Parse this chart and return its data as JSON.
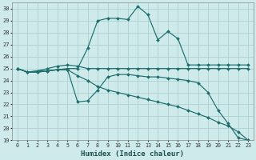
{
  "xlabel": "Humidex (Indice chaleur)",
  "bg_color": "#ceeaea",
  "grid_color": "#aed0d0",
  "line_color": "#1e6e6e",
  "xlim": [
    -0.5,
    23.5
  ],
  "ylim": [
    19,
    30.5
  ],
  "yticks": [
    19,
    20,
    21,
    22,
    23,
    24,
    25,
    26,
    27,
    28,
    29,
    30
  ],
  "xticks": [
    0,
    1,
    2,
    3,
    4,
    5,
    6,
    7,
    8,
    9,
    10,
    11,
    12,
    13,
    14,
    15,
    16,
    17,
    18,
    19,
    20,
    21,
    22,
    23
  ],
  "lines": [
    {
      "x": [
        0,
        1,
        2,
        3,
        4,
        5,
        6,
        7,
        8,
        9,
        10,
        11,
        12,
        13,
        14,
        15,
        16,
        17,
        18,
        19,
        20,
        21,
        22,
        23
      ],
      "y": [
        25.0,
        24.7,
        24.8,
        24.8,
        24.9,
        25.0,
        25.0,
        26.7,
        29.0,
        29.2,
        29.2,
        29.1,
        30.2,
        29.5,
        27.4,
        28.1,
        27.5,
        25.3,
        25.3,
        25.3,
        25.3,
        25.3,
        25.3,
        25.3
      ]
    },
    {
      "x": [
        0,
        1,
        2,
        3,
        4,
        5,
        6,
        7,
        8,
        9,
        10,
        11,
        12,
        13,
        14,
        15,
        16,
        17,
        18,
        19,
        20,
        21,
        22,
        23
      ],
      "y": [
        25.0,
        24.7,
        24.8,
        25.0,
        25.2,
        25.3,
        25.2,
        25.0,
        25.0,
        25.0,
        25.0,
        25.0,
        25.0,
        25.0,
        25.0,
        25.0,
        25.0,
        25.0,
        25.0,
        25.0,
        25.0,
        25.0,
        25.0,
        25.0
      ]
    },
    {
      "x": [
        0,
        1,
        2,
        3,
        4,
        5,
        6,
        7,
        8,
        9,
        10,
        11,
        12,
        13,
        14,
        15,
        16,
        17,
        18,
        19,
        20,
        21,
        22,
        23
      ],
      "y": [
        25.0,
        24.7,
        24.7,
        24.8,
        24.9,
        24.9,
        22.2,
        22.3,
        23.2,
        24.3,
        24.5,
        24.5,
        24.4,
        24.3,
        24.3,
        24.2,
        24.1,
        24.0,
        23.8,
        23.0,
        21.5,
        20.4,
        19.2,
        19.0
      ]
    },
    {
      "x": [
        0,
        1,
        2,
        3,
        4,
        5,
        6,
        7,
        8,
        9,
        10,
        11,
        12,
        13,
        14,
        15,
        16,
        17,
        18,
        19,
        20,
        21,
        22,
        23
      ],
      "y": [
        25.0,
        24.7,
        24.7,
        24.8,
        24.9,
        24.9,
        24.4,
        24.0,
        23.5,
        23.2,
        23.0,
        22.8,
        22.6,
        22.4,
        22.2,
        22.0,
        21.8,
        21.5,
        21.2,
        20.9,
        20.5,
        20.2,
        19.7,
        19.0
      ]
    }
  ]
}
